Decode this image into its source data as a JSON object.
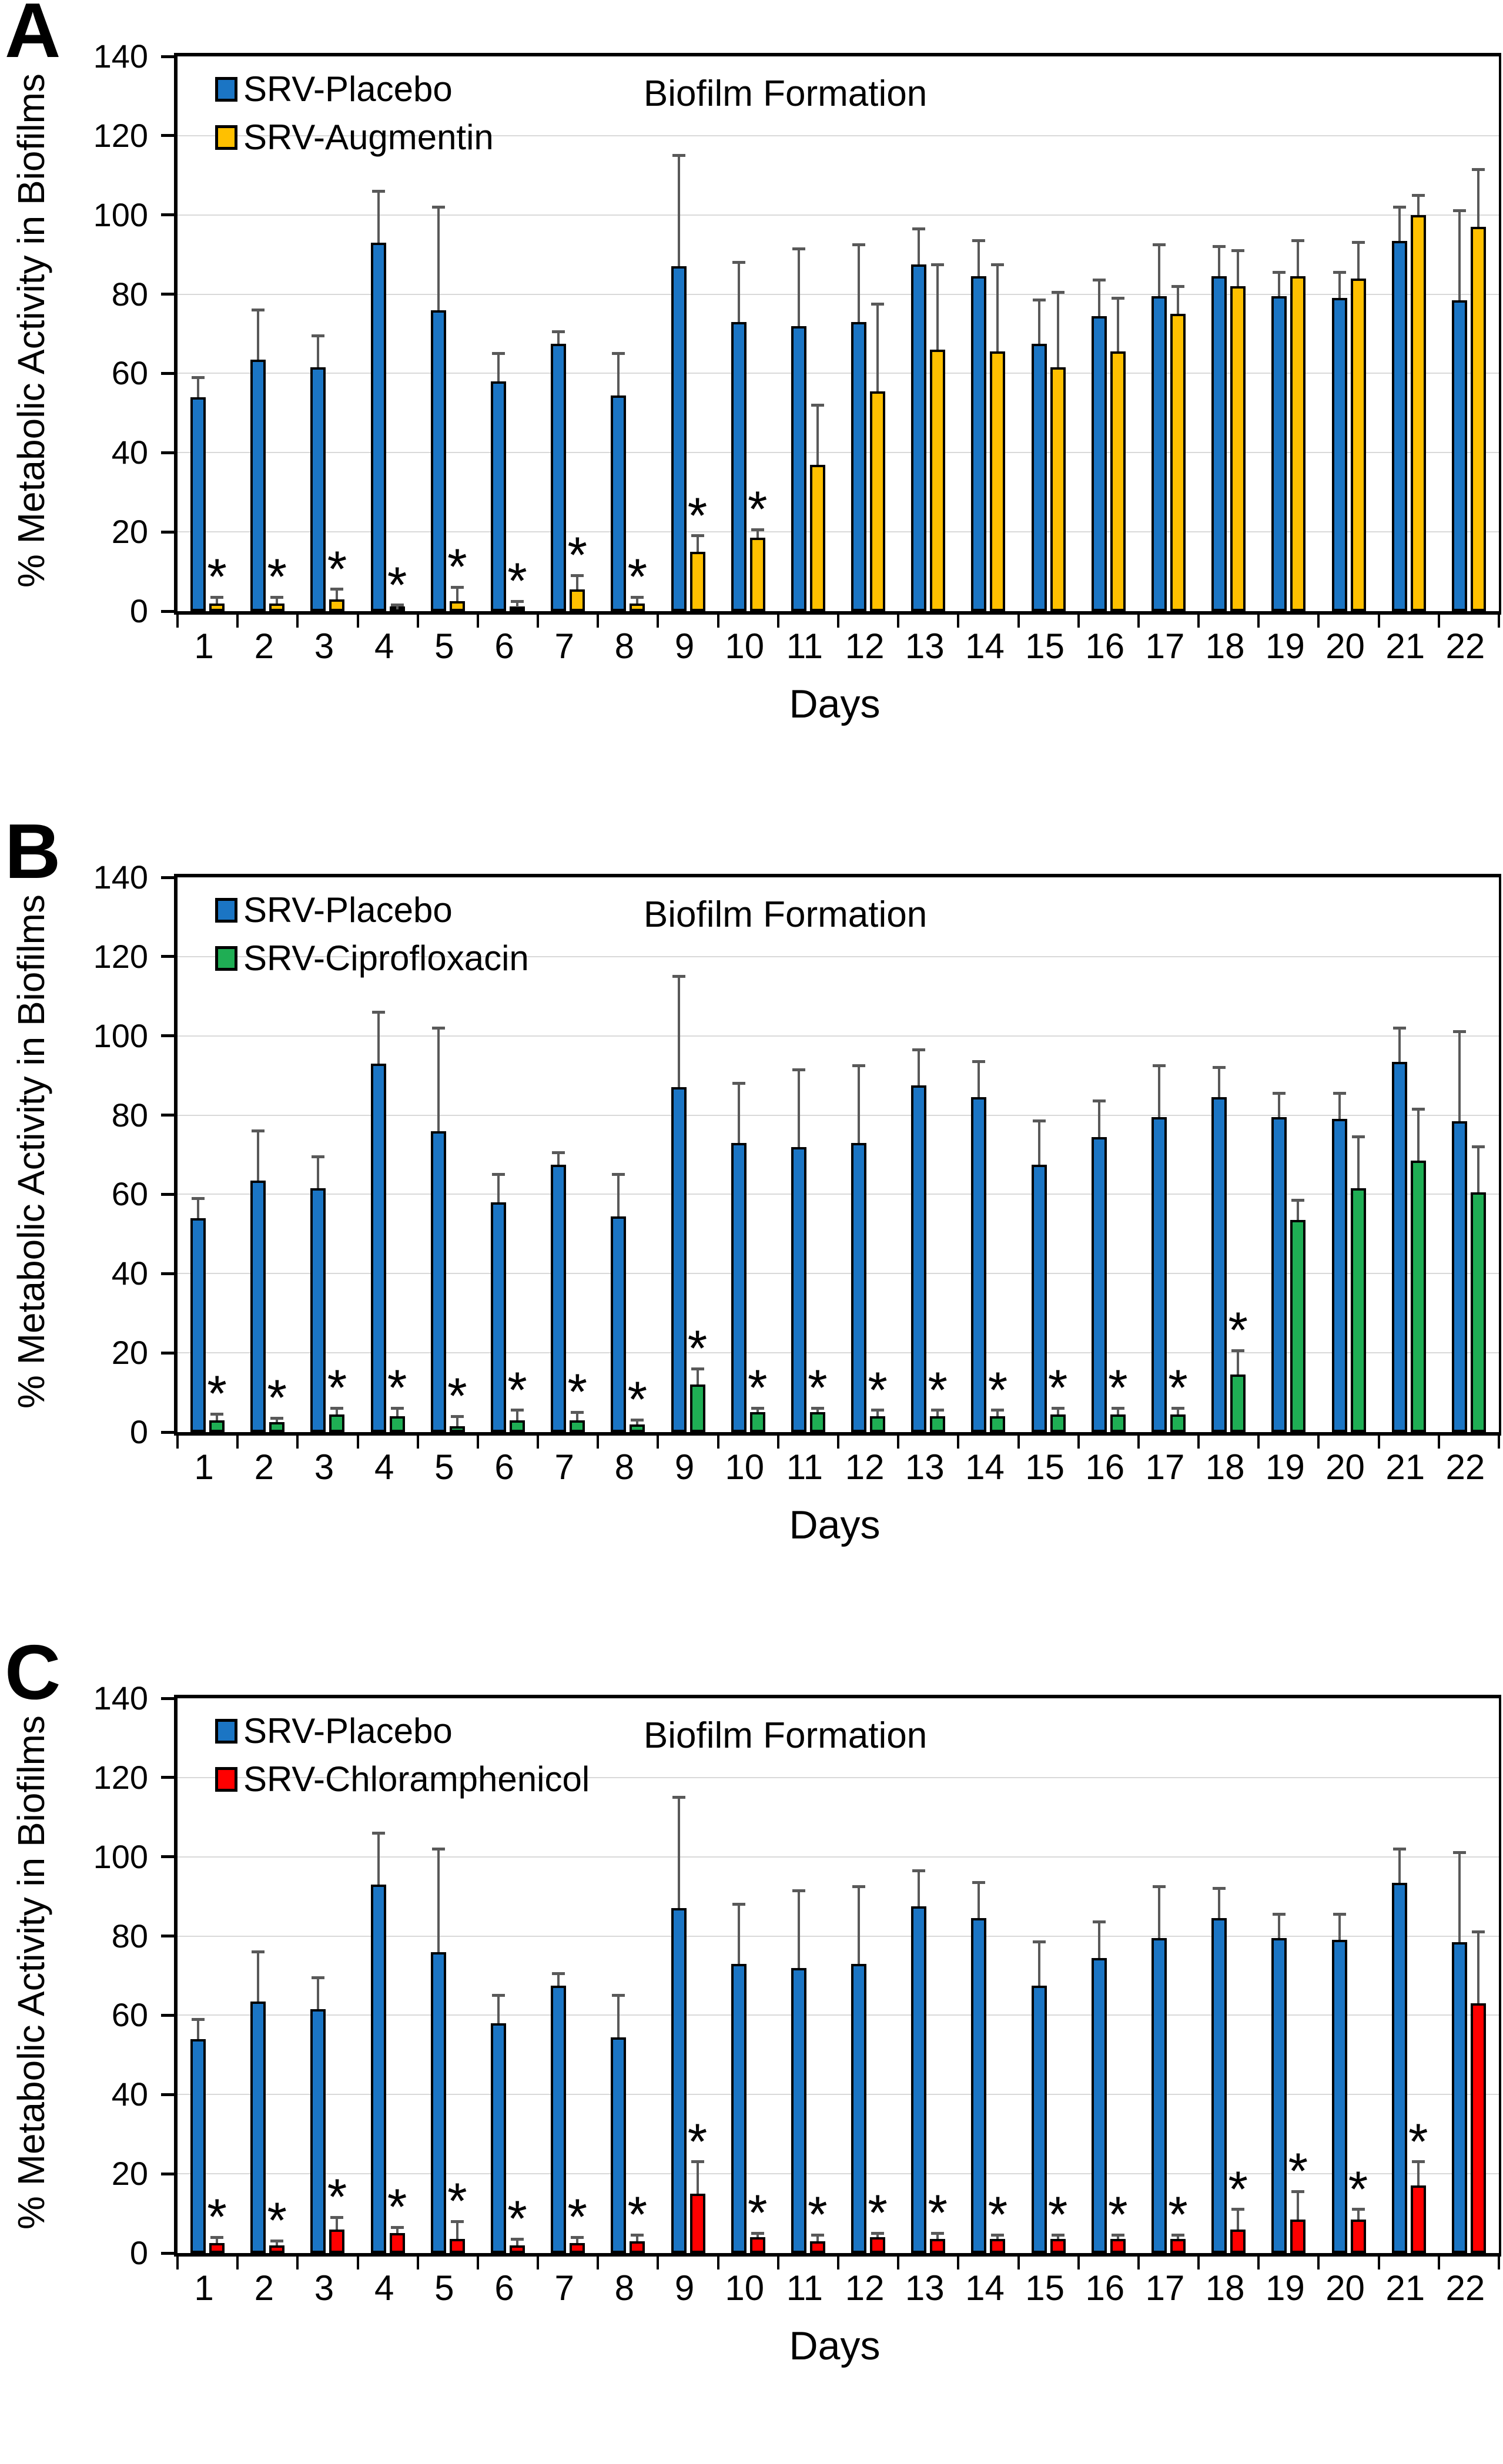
{
  "figure": {
    "title": "Biofilm Formation",
    "xlabel": "Days",
    "ylabel": "% Metabolic Activity in Biofilms",
    "significance_marker": "*",
    "colors": {
      "placebo_blue": "#1B75C4",
      "augmentin_gold": "#FFC000",
      "ciprofloxacin_green": "#1FAE54",
      "chloramphenicol_red": "#FF0000",
      "error_bar_gray": "#595959",
      "gridline_gray": "#D9D9D9"
    }
  },
  "chart_data": [
    {
      "type": "bar",
      "panel_label": "A",
      "title": "Biofilm Formation",
      "xlabel": "Days",
      "ylabel": "% Metabolic Activity in Biofilms",
      "ylim": [
        0,
        140
      ],
      "yticks": [
        0,
        20,
        40,
        60,
        80,
        100,
        120,
        140
      ],
      "grid": true,
      "legend_position": "top-left",
      "categories": [
        "1",
        "2",
        "3",
        "4",
        "5",
        "6",
        "7",
        "8",
        "9",
        "10",
        "11",
        "12",
        "13",
        "14",
        "15",
        "16",
        "17",
        "18",
        "19",
        "20",
        "21",
        "22"
      ],
      "series": [
        {
          "name": "SRV-Placebo",
          "color": "#1B75C4",
          "values": [
            54,
            63.5,
            61.5,
            93,
            76,
            58,
            67.5,
            54.5,
            87,
            73,
            72,
            73,
            87.5,
            84.5,
            67.5,
            74.5,
            79.5,
            84.5,
            79.5,
            79,
            93.5,
            78.5
          ],
          "errors": [
            5,
            12.5,
            8,
            13,
            26,
            7,
            3,
            10.5,
            28,
            15,
            19.5,
            19.5,
            9,
            9,
            11,
            9,
            13,
            7.5,
            6,
            6.5,
            8.5,
            22.5
          ],
          "sig_days": []
        },
        {
          "name": "SRV-Augmentin",
          "color": "#FFC000",
          "values": [
            2,
            2,
            3,
            0.5,
            2.5,
            1,
            5.5,
            2,
            15,
            18.5,
            37,
            55.5,
            66,
            65.5,
            61.5,
            65.5,
            75,
            82,
            84.5,
            84,
            100,
            97
          ],
          "errors": [
            1.5,
            1.5,
            2.5,
            1,
            3.5,
            1.5,
            3.5,
            1.5,
            4,
            2,
            15,
            22,
            21.5,
            22,
            19,
            13.5,
            7,
            9,
            9,
            9,
            5,
            14.5
          ],
          "sig_days": [
            1,
            2,
            3,
            4,
            5,
            6,
            7,
            8,
            9,
            10
          ]
        }
      ]
    },
    {
      "type": "bar",
      "panel_label": "B",
      "title": "Biofilm Formation",
      "xlabel": "Days",
      "ylabel": "% Metabolic Activity in Biofilms",
      "ylim": [
        0,
        140
      ],
      "yticks": [
        0,
        20,
        40,
        60,
        80,
        100,
        120,
        140
      ],
      "grid": true,
      "legend_position": "top-left",
      "categories": [
        "1",
        "2",
        "3",
        "4",
        "5",
        "6",
        "7",
        "8",
        "9",
        "10",
        "11",
        "12",
        "13",
        "14",
        "15",
        "16",
        "17",
        "18",
        "19",
        "20",
        "21",
        "22"
      ],
      "series": [
        {
          "name": "SRV-Placebo",
          "color": "#1B75C4",
          "values": [
            54,
            63.5,
            61.5,
            93,
            76,
            58,
            67.5,
            54.5,
            87,
            73,
            72,
            73,
            87.5,
            84.5,
            67.5,
            74.5,
            79.5,
            84.5,
            79.5,
            79,
            93.5,
            78.5
          ],
          "errors": [
            5,
            12.5,
            8,
            13,
            26,
            7,
            3,
            10.5,
            28,
            15,
            19.5,
            19.5,
            9,
            9,
            11,
            9,
            13,
            7.5,
            6,
            6.5,
            8.5,
            22.5
          ],
          "sig_days": []
        },
        {
          "name": "SRV-Ciprofloxacin",
          "color": "#1FAE54",
          "values": [
            3,
            2.5,
            4.5,
            4,
            1.5,
            3,
            3,
            2,
            12,
            5,
            5,
            4,
            4,
            4,
            4.5,
            4.5,
            4.5,
            14.5,
            53.5,
            61.5,
            68.5,
            60.5
          ],
          "errors": [
            1.5,
            1,
            1.5,
            2,
            2.5,
            2.5,
            2,
            1,
            4,
            1,
            1,
            1.5,
            1.5,
            1.5,
            1.5,
            1.5,
            1.5,
            6,
            5,
            13,
            13,
            11.5
          ],
          "sig_days": [
            1,
            2,
            3,
            4,
            5,
            6,
            7,
            8,
            9,
            10,
            11,
            12,
            13,
            14,
            15,
            16,
            17,
            18
          ]
        }
      ]
    },
    {
      "type": "bar",
      "panel_label": "C",
      "title": "Biofilm Formation",
      "xlabel": "Days",
      "ylabel": "% Metabolic Activity in Biofilms",
      "ylim": [
        0,
        140
      ],
      "yticks": [
        0,
        20,
        40,
        60,
        80,
        100,
        120,
        140
      ],
      "grid": true,
      "legend_position": "top-left",
      "categories": [
        "1",
        "2",
        "3",
        "4",
        "5",
        "6",
        "7",
        "8",
        "9",
        "10",
        "11",
        "12",
        "13",
        "14",
        "15",
        "16",
        "17",
        "18",
        "19",
        "20",
        "21",
        "22"
      ],
      "series": [
        {
          "name": "SRV-Placebo",
          "color": "#1B75C4",
          "values": [
            54,
            63.5,
            61.5,
            93,
            76,
            58,
            67.5,
            54.5,
            87,
            73,
            72,
            73,
            87.5,
            84.5,
            67.5,
            74.5,
            79.5,
            84.5,
            79.5,
            79,
            93.5,
            78.5
          ],
          "errors": [
            5,
            12.5,
            8,
            13,
            26,
            7,
            3,
            10.5,
            28,
            15,
            19.5,
            19.5,
            9,
            9,
            11,
            9,
            13,
            7.5,
            6,
            6.5,
            8.5,
            22.5
          ],
          "sig_days": []
        },
        {
          "name": "SRV-Chloramphenicol",
          "color": "#FF0000",
          "values": [
            2.5,
            2,
            6,
            5,
            3.5,
            2,
            2.5,
            3,
            15,
            4,
            3,
            4,
            3.5,
            3.5,
            3.5,
            3.5,
            3.5,
            6,
            8.5,
            8.5,
            17,
            63
          ],
          "errors": [
            1.5,
            1,
            3,
            1.5,
            4.5,
            1.5,
            1.5,
            1.5,
            8,
            1,
            1.5,
            1,
            1.5,
            1,
            1,
            1,
            1,
            5,
            7,
            2.5,
            6,
            18
          ],
          "sig_days": [
            1,
            2,
            3,
            4,
            5,
            6,
            7,
            8,
            9,
            10,
            11,
            12,
            13,
            14,
            15,
            16,
            17,
            18,
            19,
            20,
            21
          ]
        }
      ]
    }
  ]
}
